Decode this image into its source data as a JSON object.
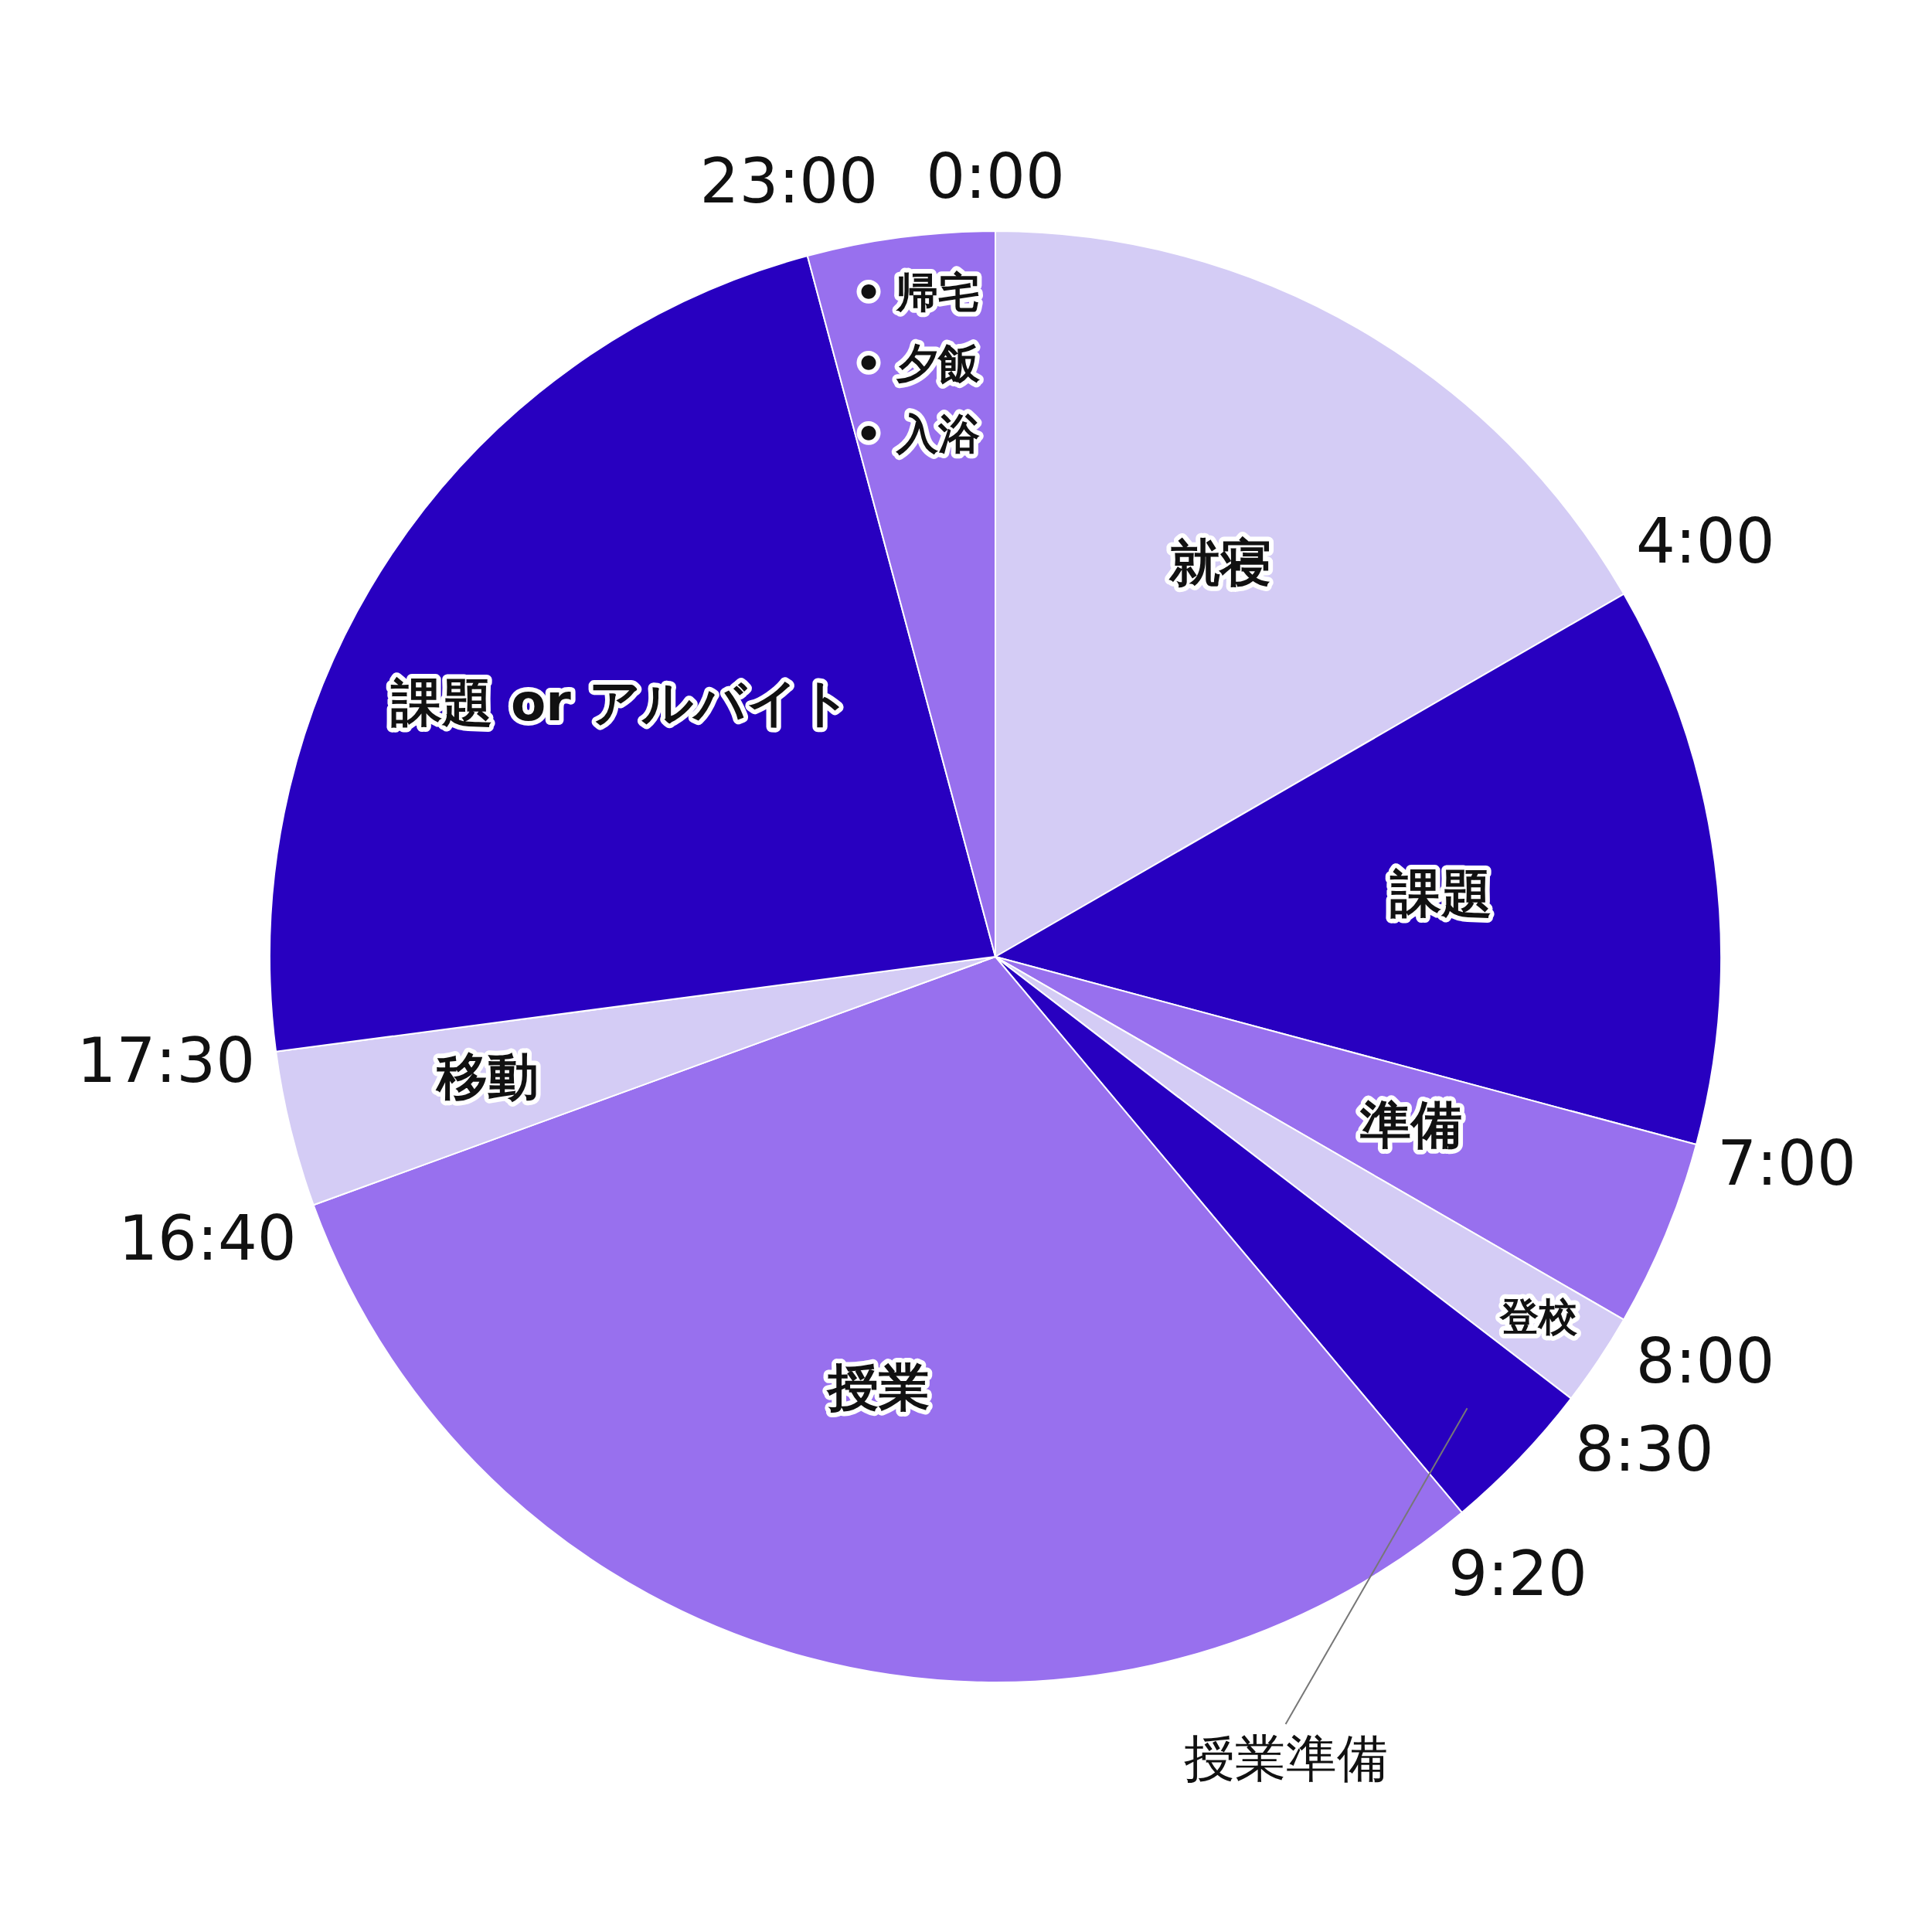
{
  "chart_data": {
    "type": "pie",
    "categories": [
      "就寝",
      "課題",
      "準備",
      "登校",
      "授業準備",
      "授業",
      "移動",
      "課題 or アルバイト",
      "• 帰宅\n• 夕飯\n• 入浴"
    ],
    "values": [
      16.67,
      12.5,
      4.17,
      2.08,
      3.47,
      30.56,
      3.47,
      22.92,
      4.17
    ],
    "colors": [
      "#d4ccf5",
      "#2800c0",
      "#9870ee",
      "#d4ccf5",
      "#2800c0",
      "#9870ee",
      "#d4ccf5",
      "#2800c0",
      "#9870ee"
    ],
    "annotations": [
      "0:00",
      "4:00",
      "7:00",
      "8:00",
      "8:30",
      "9:20",
      "16:40",
      "17:30",
      "23:00"
    ],
    "legend": false
  }
}
